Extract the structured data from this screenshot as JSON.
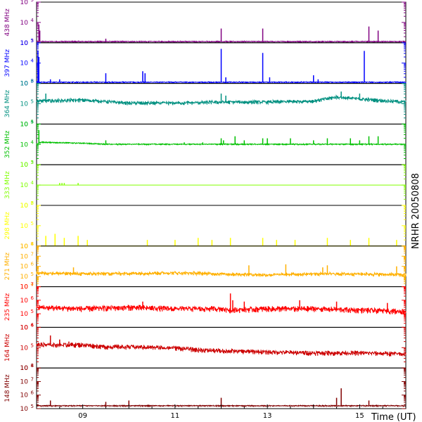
{
  "chart_data": {
    "type": "line",
    "x_range": [
      "08:00",
      "16:00"
    ],
    "x_tick_labels": [
      "09",
      "11",
      "13",
      "15"
    ],
    "x_tick_hours": [
      9,
      11,
      13,
      15
    ],
    "xlabel": "Time (UT)",
    "side_label": "NRHR 20050808",
    "log_scale": true,
    "panels": [
      {
        "name": "438 MHz",
        "color": "#800080",
        "ylim": [
          3,
          5
        ],
        "y_tick_labels": [
          "10^3",
          "10^4",
          "10^5"
        ],
        "baseline": 3.05,
        "noise": 0.02,
        "trend": [
          [
            8,
            3.05
          ],
          [
            16,
            3.05
          ]
        ],
        "spikes": [
          [
            8.05,
            3.9
          ],
          [
            8.07,
            3.6
          ],
          [
            9.5,
            3.2
          ],
          [
            12.0,
            3.7
          ],
          [
            12.9,
            3.7
          ],
          [
            13.0,
            3.1
          ],
          [
            14.2,
            3.1
          ],
          [
            15.2,
            3.8
          ],
          [
            15.4,
            3.6
          ],
          [
            15.95,
            3.1
          ]
        ]
      },
      {
        "name": "397 MHz",
        "color": "#0000ff",
        "ylim": [
          3,
          5
        ],
        "y_tick_labels": [
          "10^3",
          "10^4",
          "10^5"
        ],
        "baseline": 3.05,
        "noise": 0.02,
        "trend": [
          [
            8,
            3.05
          ],
          [
            16,
            3.05
          ]
        ],
        "spikes": [
          [
            8.03,
            4.6
          ],
          [
            8.05,
            4.3
          ],
          [
            8.3,
            3.2
          ],
          [
            8.5,
            3.2
          ],
          [
            9.5,
            3.5
          ],
          [
            10.3,
            3.6
          ],
          [
            10.35,
            3.5
          ],
          [
            12.0,
            4.7
          ],
          [
            12.1,
            3.3
          ],
          [
            12.9,
            4.5
          ],
          [
            13.05,
            3.3
          ],
          [
            14.0,
            3.4
          ],
          [
            14.1,
            3.2
          ],
          [
            15.1,
            4.6
          ]
        ]
      },
      {
        "name": "364 MHz",
        "color": "#009080",
        "ylim": [
          4,
          6
        ],
        "y_tick_labels": [
          "10^4",
          "10^5",
          "10^6"
        ],
        "baseline": 5.0,
        "noise": 0.08,
        "trend": [
          [
            8,
            5.1
          ],
          [
            9,
            5.15
          ],
          [
            10,
            5.0
          ],
          [
            11,
            5.0
          ],
          [
            12,
            5.05
          ],
          [
            13,
            5.05
          ],
          [
            14,
            5.1
          ],
          [
            14.5,
            5.3
          ],
          [
            15,
            5.2
          ],
          [
            16,
            5.05
          ]
        ],
        "spikes": [
          [
            8.2,
            5.5
          ],
          [
            12.0,
            5.5
          ],
          [
            12.1,
            5.4
          ],
          [
            14.6,
            5.6
          ],
          [
            15.0,
            5.5
          ]
        ]
      },
      {
        "name": "352 MHz",
        "color": "#00c000",
        "ylim": [
          3,
          5
        ],
        "y_tick_labels": [
          "10^3",
          "10^4",
          "10^5"
        ],
        "baseline": 4.0,
        "noise": 0.02,
        "trend": [
          [
            8,
            4.0
          ],
          [
            8.1,
            4.1
          ],
          [
            9,
            4.05
          ],
          [
            9.5,
            4.0
          ],
          [
            16,
            4.0
          ]
        ],
        "spikes": [
          [
            8.05,
            4.7
          ],
          [
            9.5,
            4.2
          ],
          [
            11.2,
            4.1
          ],
          [
            11.6,
            4.1
          ],
          [
            12.0,
            4.3
          ],
          [
            12.05,
            4.2
          ],
          [
            12.3,
            4.4
          ],
          [
            12.5,
            4.2
          ],
          [
            12.9,
            4.3
          ],
          [
            13.0,
            4.3
          ],
          [
            13.5,
            4.3
          ],
          [
            14.0,
            4.2
          ],
          [
            14.3,
            4.3
          ],
          [
            14.8,
            4.3
          ],
          [
            15.0,
            4.2
          ],
          [
            15.2,
            4.4
          ],
          [
            15.4,
            4.4
          ]
        ]
      },
      {
        "name": "333 MHz",
        "color": "#80ff00",
        "ylim": [
          3,
          5
        ],
        "y_tick_labels": [
          "10^3",
          "10^4",
          "10^5"
        ],
        "baseline": 4.0,
        "noise": 0.0,
        "trend": [
          [
            8,
            4.0
          ],
          [
            16,
            4.0
          ]
        ],
        "spikes": [
          [
            8.5,
            4.1
          ],
          [
            8.55,
            4.1
          ],
          [
            8.6,
            4.1
          ],
          [
            8.9,
            4.1
          ]
        ]
      },
      {
        "name": "298 MHz",
        "color": "#ffff00",
        "ylim": [
          4,
          6
        ],
        "y_tick_labels": [
          "10^4",
          "10^5",
          "10^6"
        ],
        "baseline": 4.0,
        "noise": 0.0,
        "trend": [
          [
            8,
            4.0
          ],
          [
            16,
            4.0
          ]
        ],
        "spikes": [
          [
            8.2,
            4.5
          ],
          [
            8.4,
            4.6
          ],
          [
            8.6,
            4.4
          ],
          [
            8.9,
            4.5
          ],
          [
            9.1,
            4.3
          ],
          [
            10.4,
            4.3
          ],
          [
            11.0,
            4.3
          ],
          [
            11.5,
            4.4
          ],
          [
            11.8,
            4.3
          ],
          [
            12.2,
            4.4
          ],
          [
            12.9,
            4.4
          ],
          [
            13.2,
            4.3
          ],
          [
            13.6,
            4.3
          ],
          [
            14.3,
            4.4
          ],
          [
            14.8,
            4.3
          ],
          [
            15.2,
            4.4
          ],
          [
            15.8,
            4.3
          ]
        ]
      },
      {
        "name": "271 MHz",
        "color": "#ffb000",
        "ylim": [
          4,
          8
        ],
        "y_tick_labels": [
          "10^4",
          "10^5",
          "10^6",
          "10^7",
          "10^8"
        ],
        "baseline": 5.2,
        "noise": 0.15,
        "trend": [
          [
            8,
            5.3
          ],
          [
            9,
            5.2
          ],
          [
            10,
            5.25
          ],
          [
            11,
            5.3
          ],
          [
            12,
            5.2
          ],
          [
            13,
            5.1
          ],
          [
            14,
            5.2
          ],
          [
            15,
            5.2
          ],
          [
            16,
            5.1
          ]
        ],
        "spikes": [
          [
            8.8,
            5.9
          ],
          [
            12.6,
            6.1
          ],
          [
            13.4,
            6.2
          ],
          [
            14.2,
            5.9
          ],
          [
            14.3,
            6.1
          ],
          [
            15.8,
            6.0
          ]
        ]
      },
      {
        "name": "235 MHz",
        "color": "#ff0000",
        "ylim": [
          4,
          7
        ],
        "y_tick_labels": [
          "10^4",
          "10^5",
          "10^6",
          "10^7"
        ],
        "baseline": 5.2,
        "noise": 0.18,
        "trend": [
          [
            8,
            5.4
          ],
          [
            9,
            5.3
          ],
          [
            10,
            5.4
          ],
          [
            11,
            5.3
          ],
          [
            12,
            5.3
          ],
          [
            12.2,
            5.2
          ],
          [
            13,
            5.3
          ],
          [
            14,
            5.3
          ],
          [
            15,
            5.2
          ],
          [
            16,
            5.1
          ]
        ],
        "spikes": [
          [
            10.3,
            5.9
          ],
          [
            12.2,
            6.5
          ],
          [
            12.25,
            6.0
          ],
          [
            12.5,
            5.9
          ],
          [
            13.7,
            6.0
          ],
          [
            14.5,
            5.9
          ],
          [
            15.6,
            5.8
          ]
        ]
      },
      {
        "name": "164 MHz",
        "color": "#cc0000",
        "ylim": [
          4,
          6
        ],
        "y_tick_labels": [
          "10^4",
          "10^5",
          "10^6"
        ],
        "baseline": 5.0,
        "noise": 0.1,
        "trend": [
          [
            8,
            5.1
          ],
          [
            9,
            5.1
          ],
          [
            9.5,
            5.0
          ],
          [
            10,
            5.0
          ],
          [
            11,
            4.95
          ],
          [
            11.5,
            4.85
          ],
          [
            12,
            4.8
          ],
          [
            13,
            4.75
          ],
          [
            14,
            4.7
          ],
          [
            15,
            4.7
          ],
          [
            16,
            4.65
          ]
        ],
        "spikes": [
          [
            8.3,
            5.6
          ],
          [
            8.5,
            5.4
          ],
          [
            8.7,
            5.3
          ]
        ]
      },
      {
        "name": "148 MHz",
        "color": "#800000",
        "ylim": [
          5,
          8
        ],
        "y_tick_labels": [
          "10^5",
          "10^6",
          "10^7",
          "10^8"
        ],
        "baseline": 5.2,
        "noise": 0.03,
        "trend": [
          [
            8,
            5.2
          ],
          [
            16,
            5.2
          ]
        ],
        "spikes": [
          [
            8.3,
            5.6
          ],
          [
            9.5,
            5.5
          ],
          [
            10.0,
            5.6
          ],
          [
            12.0,
            5.8
          ],
          [
            14.5,
            5.8
          ],
          [
            14.6,
            6.5
          ],
          [
            15.2,
            5.6
          ]
        ]
      }
    ]
  }
}
